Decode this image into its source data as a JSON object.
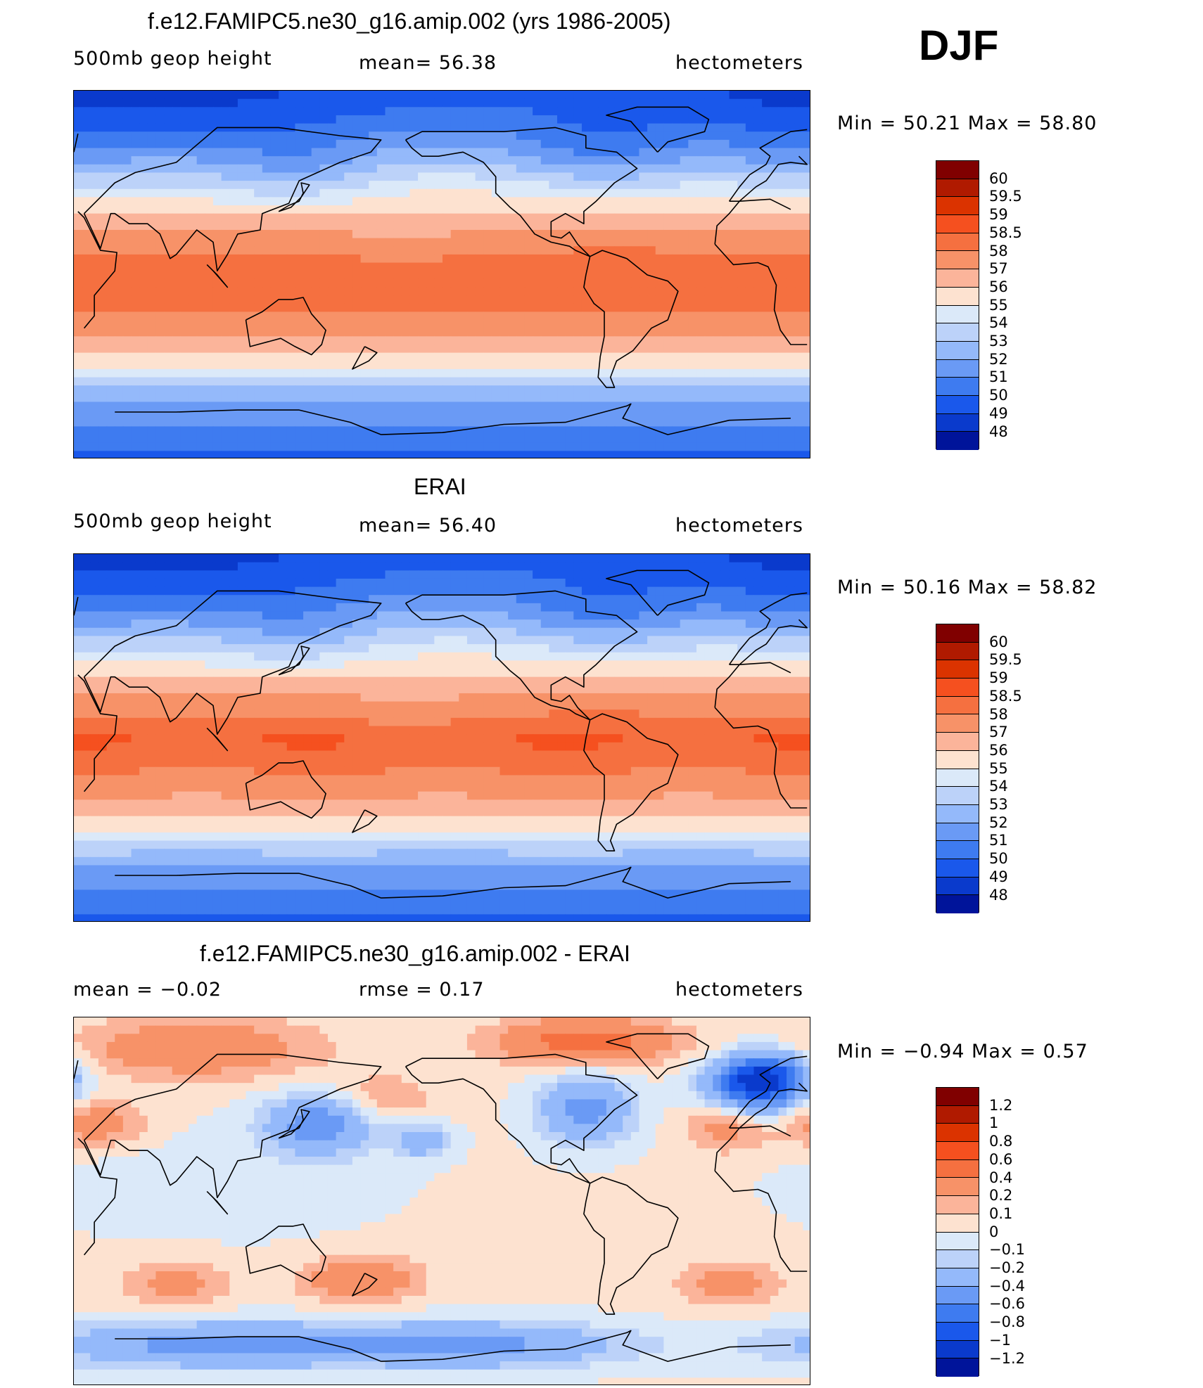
{
  "season": "DJF",
  "panels": [
    {
      "title": "f.e12.FAMIPC5.ne30_g16.amip.002 (yrs 1986-2005)",
      "left_label": "500mb  geop  height",
      "center_label": "mean=   56.38",
      "right_label": "hectometers",
      "minmax": "Min  =    50.21  Max  =    58.80",
      "map_kind": "field",
      "map_variant": "model"
    },
    {
      "title": "ERAI",
      "left_label": "500mb  geop  height",
      "center_label": "mean=   56.40",
      "right_label": "hectometers",
      "minmax": "Min  =    50.16  Max  =    58.82",
      "map_kind": "field",
      "map_variant": "obs"
    },
    {
      "title": "f.e12.FAMIPC5.ne30_g16.amip.002 - ERAI",
      "left_label": "mean  =    −0.02",
      "center_label": "rmse  =     0.17",
      "right_label": "hectometers",
      "minmax": "Min  =   −0.94  Max  =      0.57",
      "map_kind": "diff",
      "map_variant": "diff"
    }
  ],
  "colorbars": {
    "field": {
      "labels": [
        "60",
        "59.5",
        "59",
        "58.5",
        "58",
        "57",
        "56",
        "55",
        "54",
        "53",
        "52",
        "51",
        "50",
        "49",
        "48"
      ],
      "colors": [
        "#800000",
        "#b01a00",
        "#db3300",
        "#f5501f",
        "#f57040",
        "#f79268",
        "#fbb49a",
        "#fde2d0",
        "#dbe9f9",
        "#bcd2f9",
        "#94b9fa",
        "#6a9af5",
        "#3e7bf0",
        "#1a58eb",
        "#0a3acc",
        "#00149a"
      ]
    },
    "diff": {
      "labels": [
        "1.2",
        "1",
        "0.8",
        "0.6",
        "0.4",
        "0.2",
        "0.1",
        "0",
        "−0.1",
        "−0.2",
        "−0.4",
        "−0.6",
        "−0.8",
        "−1",
        "−1.2"
      ],
      "colors": [
        "#800000",
        "#b01a00",
        "#db3300",
        "#f5501f",
        "#f57040",
        "#f79268",
        "#fbb49a",
        "#fde2d0",
        "#dbe9f9",
        "#bcd2f9",
        "#94b9fa",
        "#6a9af5",
        "#3e7bf0",
        "#1a58eb",
        "#0a3acc",
        "#00149a"
      ]
    }
  }
}
